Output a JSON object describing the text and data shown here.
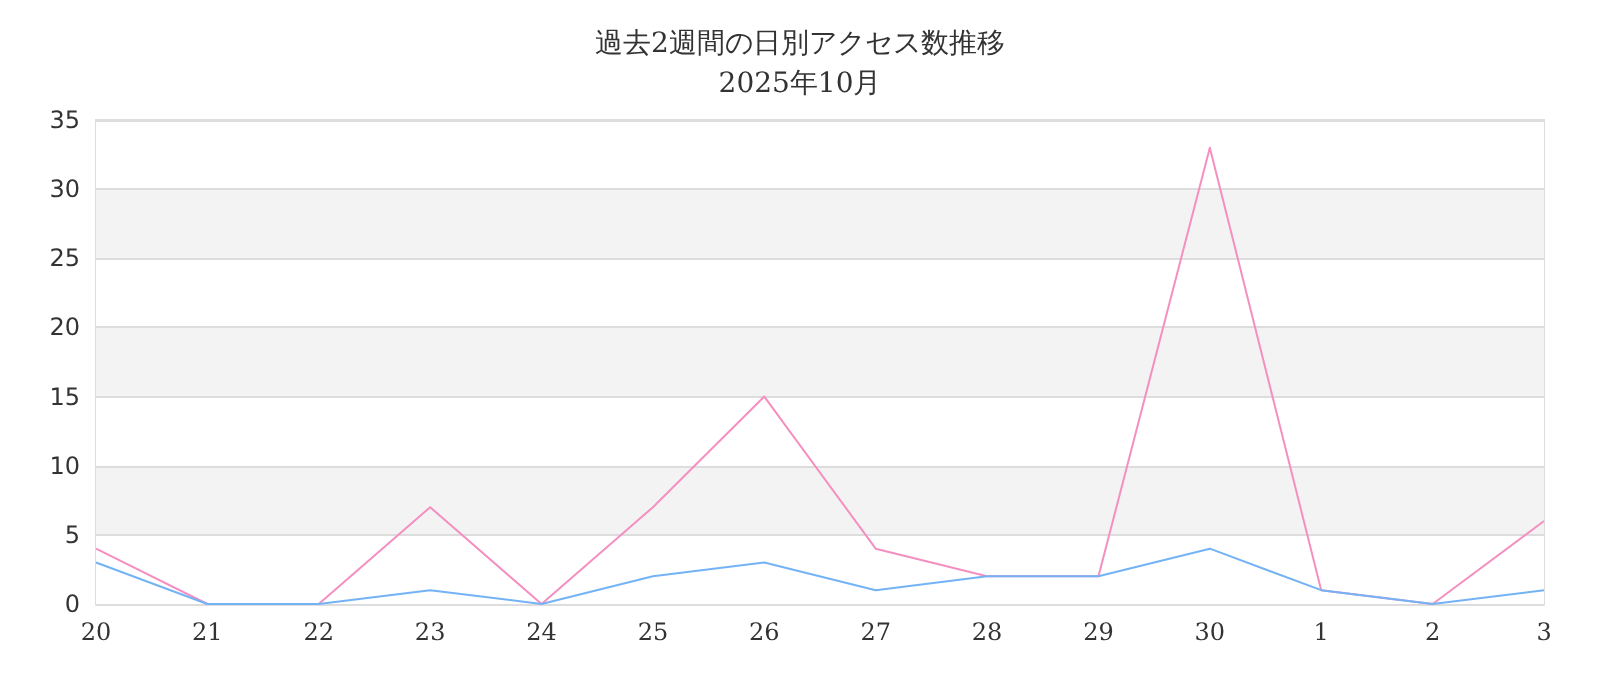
{
  "chart_data": {
    "type": "line",
    "title": "過去2週間の日別アクセス数推移",
    "subtitle": "2025年10月",
    "categories": [
      "20",
      "21",
      "22",
      "23",
      "24",
      "25",
      "26",
      "27",
      "28",
      "29",
      "30",
      "1",
      "2",
      "3"
    ],
    "series": [
      {
        "color": "#f48fc0",
        "values": [
          4,
          0,
          0,
          7,
          0,
          7,
          15,
          4,
          2,
          2,
          33,
          1,
          0,
          6
        ]
      },
      {
        "color": "#73b3f5",
        "values": [
          3,
          0,
          0,
          1,
          0,
          2,
          3,
          1,
          2,
          2,
          4,
          1,
          0,
          1
        ]
      }
    ],
    "ylim": [
      0,
      35
    ],
    "yticks": [
      0,
      5,
      10,
      15,
      20,
      25,
      30,
      35
    ],
    "grid": "y",
    "marker": "none",
    "line_style": "solid"
  }
}
